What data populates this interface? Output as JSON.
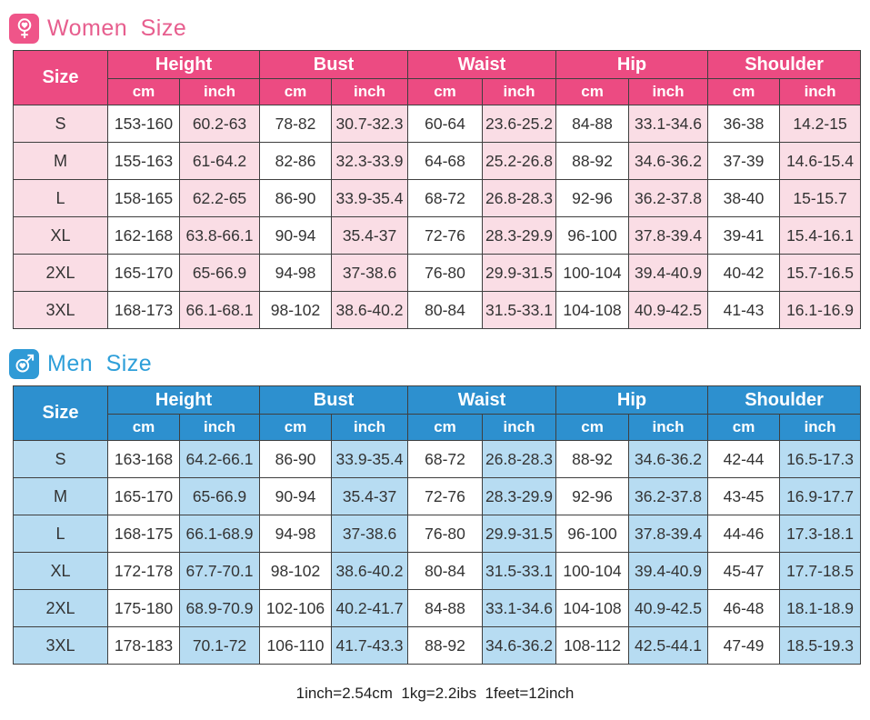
{
  "women": {
    "title": "Women Size",
    "size_label": "Size",
    "groups": [
      "Height",
      "Bust",
      "Waist",
      "Hip",
      "Shoulder"
    ],
    "units": [
      "cm",
      "inch"
    ],
    "colors": {
      "header": "#EC4B82",
      "tint": "#FADDE5",
      "title": "#E75E8E",
      "icon_bg": "#EF5589"
    },
    "rows": [
      {
        "size": "S",
        "values": [
          "153-160",
          "60.2-63",
          "78-82",
          "30.7-32.3",
          "60-64",
          "23.6-25.2",
          "84-88",
          "33.1-34.6",
          "36-38",
          "14.2-15"
        ]
      },
      {
        "size": "M",
        "values": [
          "155-163",
          "61-64.2",
          "82-86",
          "32.3-33.9",
          "64-68",
          "25.2-26.8",
          "88-92",
          "34.6-36.2",
          "37-39",
          "14.6-15.4"
        ]
      },
      {
        "size": "L",
        "values": [
          "158-165",
          "62.2-65",
          "86-90",
          "33.9-35.4",
          "68-72",
          "26.8-28.3",
          "92-96",
          "36.2-37.8",
          "38-40",
          "15-15.7"
        ]
      },
      {
        "size": "XL",
        "values": [
          "162-168",
          "63.8-66.1",
          "90-94",
          "35.4-37",
          "72-76",
          "28.3-29.9",
          "96-100",
          "37.8-39.4",
          "39-41",
          "15.4-16.1"
        ]
      },
      {
        "size": "2XL",
        "values": [
          "165-170",
          "65-66.9",
          "94-98",
          "37-38.6",
          "76-80",
          "29.9-31.5",
          "100-104",
          "39.4-40.9",
          "40-42",
          "15.7-16.5"
        ]
      },
      {
        "size": "3XL",
        "values": [
          "168-173",
          "66.1-68.1",
          "98-102",
          "38.6-40.2",
          "80-84",
          "31.5-33.1",
          "104-108",
          "40.9-42.5",
          "41-43",
          "16.1-16.9"
        ]
      }
    ]
  },
  "men": {
    "title": "Men Size",
    "size_label": "Size",
    "groups": [
      "Height",
      "Bust",
      "Waist",
      "Hip",
      "Shoulder"
    ],
    "units": [
      "cm",
      "inch"
    ],
    "colors": {
      "header": "#2D90CF",
      "tint": "#B7DCF2",
      "title": "#2E9FD9",
      "icon_bg": "#2F9AD6"
    },
    "rows": [
      {
        "size": "S",
        "values": [
          "163-168",
          "64.2-66.1",
          "86-90",
          "33.9-35.4",
          "68-72",
          "26.8-28.3",
          "88-92",
          "34.6-36.2",
          "42-44",
          "16.5-17.3"
        ]
      },
      {
        "size": "M",
        "values": [
          "165-170",
          "65-66.9",
          "90-94",
          "35.4-37",
          "72-76",
          "28.3-29.9",
          "92-96",
          "36.2-37.8",
          "43-45",
          "16.9-17.7"
        ]
      },
      {
        "size": "L",
        "values": [
          "168-175",
          "66.1-68.9",
          "94-98",
          "37-38.6",
          "76-80",
          "29.9-31.5",
          "96-100",
          "37.8-39.4",
          "44-46",
          "17.3-18.1"
        ]
      },
      {
        "size": "XL",
        "values": [
          "172-178",
          "67.7-70.1",
          "98-102",
          "38.6-40.2",
          "80-84",
          "31.5-33.1",
          "100-104",
          "39.4-40.9",
          "45-47",
          "17.7-18.5"
        ]
      },
      {
        "size": "2XL",
        "values": [
          "175-180",
          "68.9-70.9",
          "102-106",
          "40.2-41.7",
          "84-88",
          "33.1-34.6",
          "104-108",
          "40.9-42.5",
          "46-48",
          "18.1-18.9"
        ]
      },
      {
        "size": "3XL",
        "values": [
          "178-183",
          "70.1-72",
          "106-110",
          "41.7-43.3",
          "88-92",
          "34.6-36.2",
          "108-112",
          "42.5-44.1",
          "47-49",
          "18.5-19.3"
        ]
      }
    ]
  },
  "footer": {
    "note": "1inch=2.54cm  1kg=2.2ibs  1feet=12inch"
  }
}
